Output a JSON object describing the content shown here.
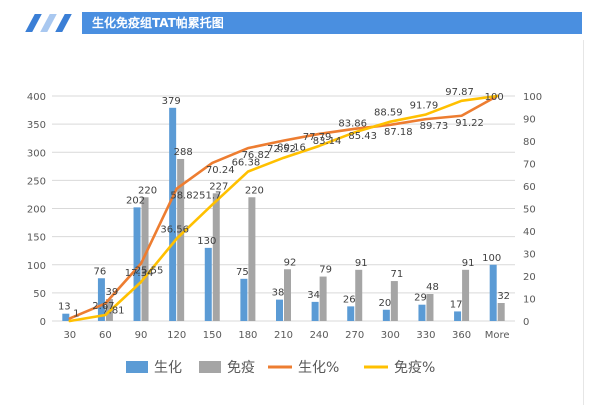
{
  "header": {
    "title": "生化免疫组TAT帕累托图"
  },
  "colors": {
    "header_bg": "#4a8fe0",
    "slash_dark": "#3b7fd6",
    "slash_light": "#a9c8f0",
    "biochem_bar": "#5b9bd5",
    "immuno_bar": "#a5a5a5",
    "biochem_line": "#ed7d31",
    "immuno_line": "#ffc000",
    "grid": "#d9d9d9",
    "axis_text": "#595959",
    "label_text": "#404040"
  },
  "chart_data": {
    "type": "bar",
    "combo": "bar + line (pareto)",
    "categories": [
      "30",
      "60",
      "90",
      "120",
      "150",
      "180",
      "210",
      "240",
      "270",
      "300",
      "330",
      "360",
      "More"
    ],
    "series": [
      {
        "name": "生化",
        "type": "bar",
        "axis": "left",
        "color": "#5b9bd5",
        "values": [
          13,
          76,
          202,
          379,
          130,
          75,
          38,
          34,
          26,
          20,
          29,
          17,
          100
        ]
      },
      {
        "name": "免疫",
        "type": "bar",
        "axis": "left",
        "color": "#a5a5a5",
        "values": [
          1,
          39,
          220,
          288,
          227,
          220,
          92,
          79,
          91,
          71,
          48,
          91,
          32
        ]
      },
      {
        "name": "生化%",
        "type": "line",
        "axis": "right",
        "color": "#ed7d31",
        "values": [
          1.12,
          7.81,
          25.55,
          58.82,
          70.24,
          76.82,
          80.16,
          83.14,
          85.43,
          87.18,
          89.73,
          91.22,
          100
        ]
      },
      {
        "name": "免疫%",
        "type": "line",
        "axis": "right",
        "color": "#ffc000",
        "values": [
          0,
          2.67,
          17.34,
          36.56,
          51.7,
          66.38,
          72.52,
          77.79,
          83.86,
          88.59,
          91.79,
          97.87,
          100
        ]
      }
    ],
    "data_labels": {
      "生化": [
        "13",
        "76",
        "202",
        "379",
        "130",
        "75",
        "38",
        "34",
        "26",
        "20",
        "29",
        "17",
        "100"
      ],
      "免疫": [
        "1",
        "39",
        "220",
        "288",
        "227",
        "220",
        "92",
        "79",
        "91",
        "71",
        "48",
        "91",
        "32"
      ],
      "生化%": [
        "",
        "7.81",
        "25.55",
        "58.82",
        "70.24",
        "76.82",
        "80.16",
        "83.14",
        "85.43",
        "87.18",
        "89.73",
        "91.22",
        "100"
      ],
      "免疫%": [
        "",
        "2.67",
        "17.34",
        "36.56",
        "51.7",
        "66.38",
        "72.52",
        "77.79",
        "83.86",
        "88.59",
        "91.79",
        "97.87",
        ""
      ]
    },
    "y_left": {
      "min": 0,
      "max": 400,
      "ticks": [
        "0",
        "50",
        "100",
        "150",
        "200",
        "250",
        "300",
        "350",
        "400"
      ]
    },
    "y_right": {
      "min": 0,
      "max": 100,
      "ticks": [
        "0",
        "10",
        "20",
        "30",
        "40",
        "50",
        "60",
        "70",
        "80",
        "90",
        "100"
      ]
    },
    "grid": true,
    "legend_position": "bottom"
  }
}
